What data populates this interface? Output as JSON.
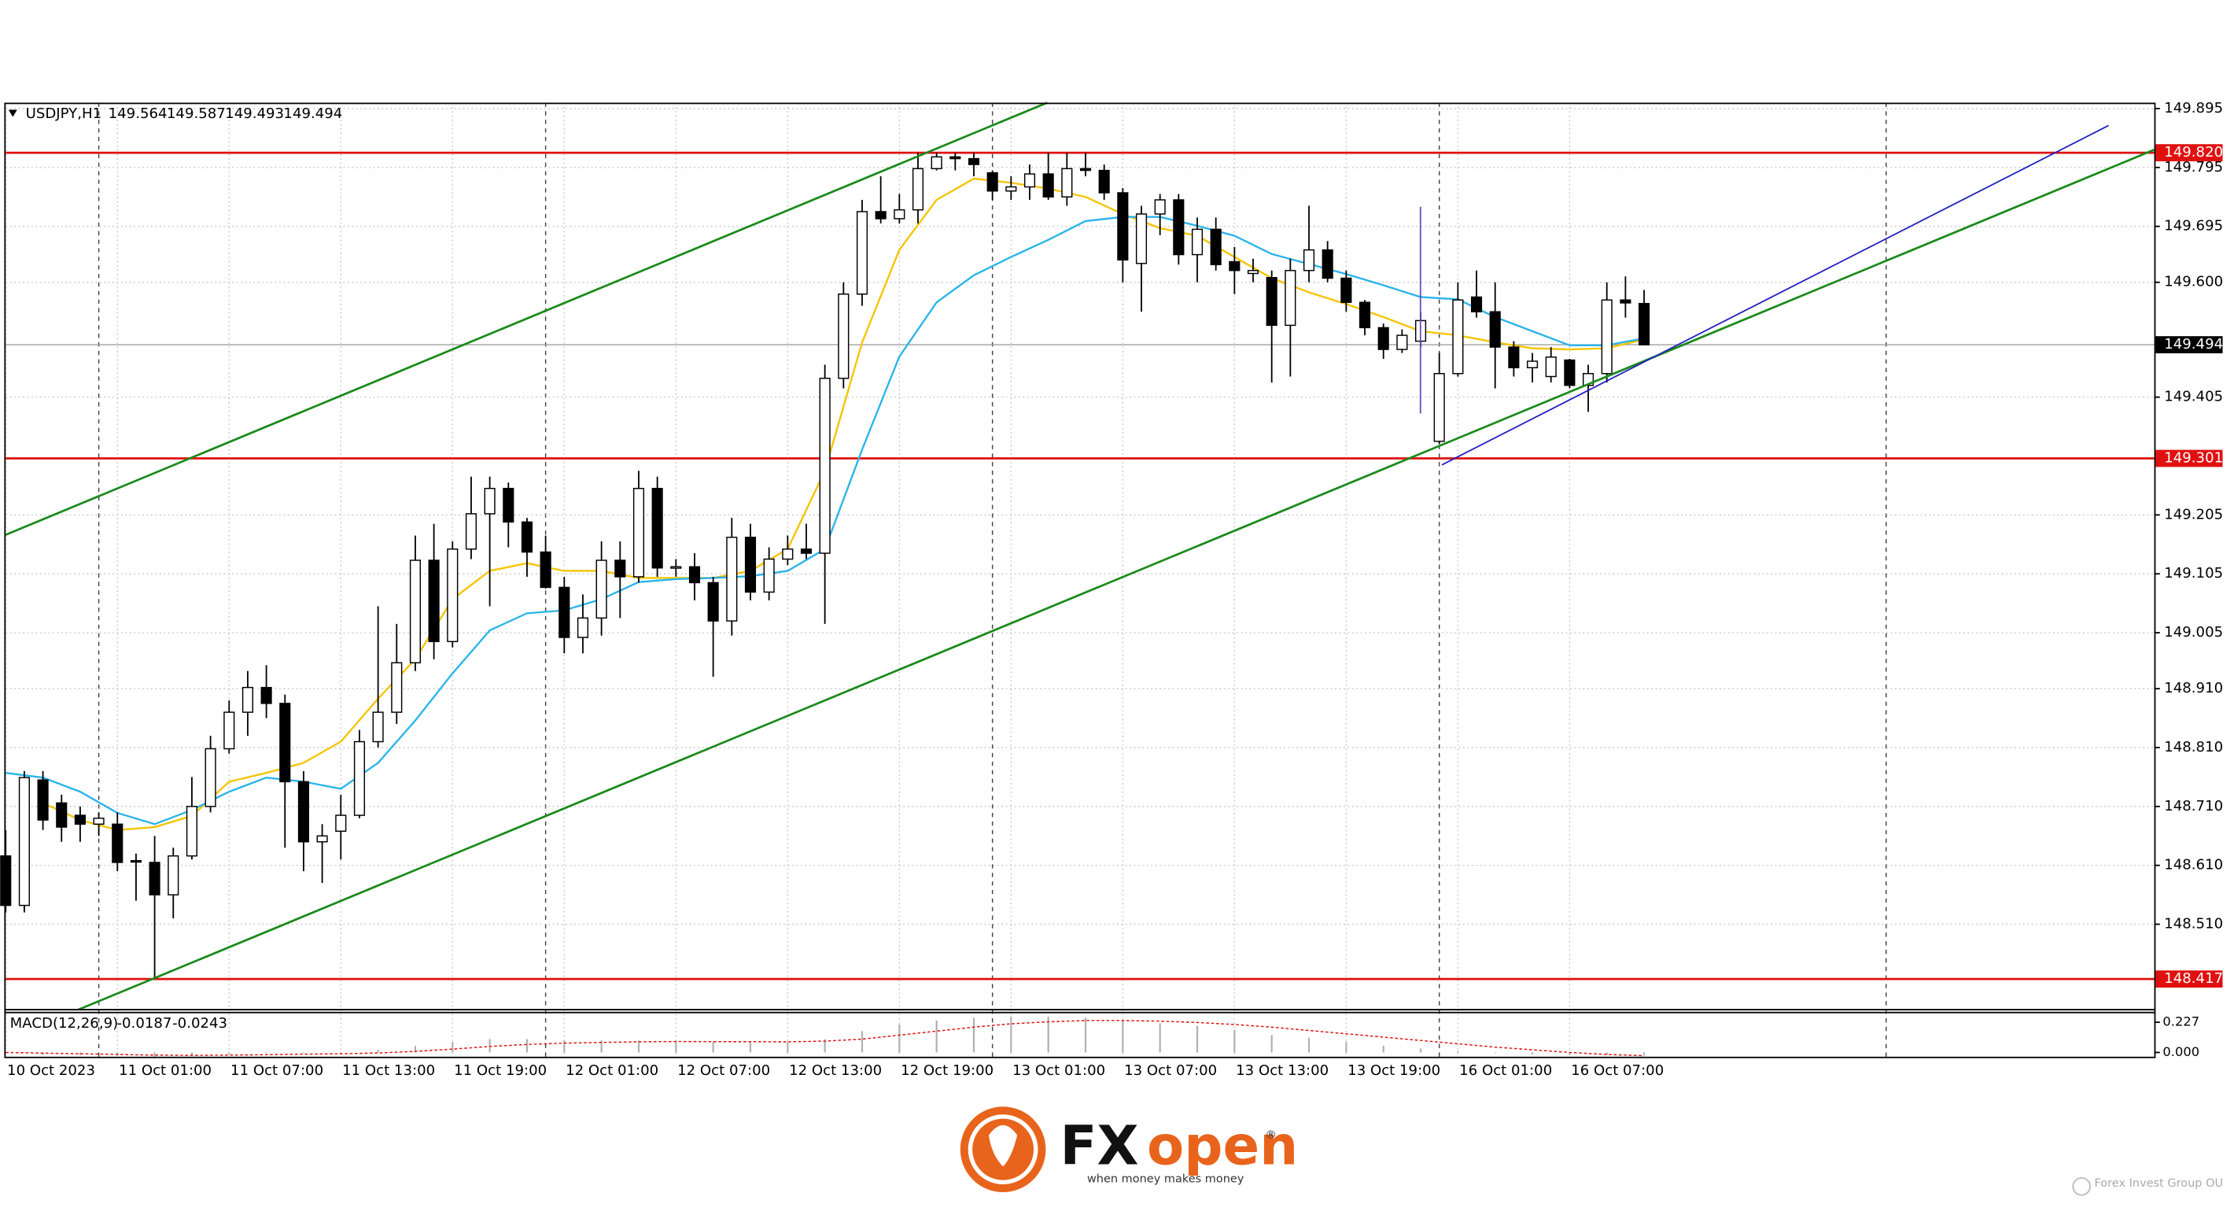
{
  "chart_data": [
    {
      "type": "candlestick",
      "title": "USDJPY,H1",
      "xlim": [
        0,
        115.4
      ],
      "ylim": [
        148.365,
        149.905
      ],
      "xticks": [
        {
          "value": 0,
          "label": "10 Oct 2023"
        },
        {
          "value": 6,
          "label": "11 Oct 01:00"
        },
        {
          "value": 12,
          "label": "11 Oct 07:00"
        },
        {
          "value": 18,
          "label": "11 Oct 13:00"
        },
        {
          "value": 24,
          "label": "11 Oct 19:00"
        },
        {
          "value": 30,
          "label": "12 Oct 01:00"
        },
        {
          "value": 36,
          "label": "12 Oct 07:00"
        },
        {
          "value": 42,
          "label": "12 Oct 13:00"
        },
        {
          "value": 48,
          "label": "12 Oct 19:00"
        },
        {
          "value": 54,
          "label": "13 Oct 01:00"
        },
        {
          "value": 60,
          "label": "13 Oct 07:00"
        },
        {
          "value": 66,
          "label": "13 Oct 13:00"
        },
        {
          "value": 72,
          "label": "13 Oct 19:00"
        },
        {
          "value": 78,
          "label": "16 Oct 01:00"
        },
        {
          "value": 84,
          "label": "16 Oct 07:00"
        }
      ],
      "yticks": [
        149.895,
        149.795,
        149.695,
        {
          "value": 149.6,
          "label": "149.600"
        },
        149.405,
        149.205,
        149.105,
        149.005,
        {
          "value": 148.91,
          "label": "148.910"
        },
        {
          "value": 148.81,
          "label": "148.810"
        },
        {
          "value": 148.71,
          "label": "148.710"
        },
        {
          "value": 148.61,
          "label": "148.610"
        },
        {
          "value": 148.51,
          "label": "148.510"
        }
      ],
      "grid": true,
      "levels": [
        {
          "value": 149.82,
          "label": "149.820"
        },
        149.301,
        148.417
      ],
      "level_color": "#e01010",
      "series": [
        {
          "color": "#000000",
          "open": [
            148.626,
            148.542,
            148.755,
            148.716,
            148.695,
            148.68,
            148.68,
            148.618,
            148.615,
            148.56,
            148.626,
            148.71,
            148.808,
            148.87,
            148.912,
            148.885,
            148.752,
            148.65,
            148.668,
            148.695,
            148.82,
            148.87,
            148.954,
            149.128,
            148.99,
            149.147,
            149.207,
            149.25,
            149.193,
            149.142,
            149.082,
            148.997,
            149.03,
            149.128,
            149.1,
            149.25,
            149.115,
            149.117,
            149.09,
            149.025,
            149.167,
            149.074,
            149.13,
            149.147,
            149.14,
            149.437,
            149.58,
            149.72,
            149.708,
            149.723,
            149.793,
            149.813,
            149.81,
            149.786,
            149.755,
            149.762,
            149.784,
            149.745,
            149.793,
            149.79,
            149.752,
            149.632,
            149.716,
            149.74,
            149.647,
            149.69,
            149.635,
            149.615,
            149.608,
            149.527,
            149.62,
            149.655,
            149.607,
            149.566,
            149.523,
            149.486,
            149.5,
            149.33,
            149.445,
            149.575,
            149.55,
            149.49,
            149.455,
            149.44,
            149.468,
            149.425,
            149.445,
            149.57,
            149.564
          ],
          "high": [
            148.67,
            148.77,
            148.77,
            148.73,
            148.71,
            148.7,
            148.7,
            148.63,
            148.66,
            148.64,
            148.76,
            148.83,
            148.89,
            148.94,
            148.95,
            148.9,
            148.77,
            148.68,
            148.73,
            148.84,
            149.05,
            149.02,
            149.17,
            149.19,
            149.16,
            149.27,
            149.27,
            149.26,
            149.2,
            149.17,
            149.1,
            149.07,
            149.16,
            149.16,
            149.28,
            149.27,
            149.13,
            149.14,
            149.1,
            149.2,
            149.19,
            149.15,
            149.17,
            149.19,
            149.46,
            149.6,
            149.74,
            149.78,
            149.75,
            149.82,
            149.82,
            149.82,
            149.82,
            149.79,
            149.78,
            149.8,
            149.82,
            149.82,
            149.82,
            149.8,
            149.76,
            149.73,
            149.75,
            149.75,
            149.71,
            149.71,
            149.66,
            149.64,
            149.62,
            149.64,
            149.73,
            149.67,
            149.62,
            149.57,
            149.53,
            149.52,
            149.55,
            149.48,
            149.6,
            149.62,
            149.6,
            149.5,
            149.48,
            149.49,
            149.47,
            149.46,
            149.6,
            149.61,
            149.587
          ],
          "low": [
            148.53,
            148.53,
            148.67,
            148.65,
            148.65,
            148.66,
            148.6,
            148.55,
            148.417,
            148.52,
            148.62,
            148.7,
            148.8,
            148.83,
            148.86,
            148.64,
            148.6,
            148.58,
            148.62,
            148.69,
            148.81,
            148.85,
            148.94,
            148.96,
            148.98,
            149.13,
            149.05,
            149.15,
            149.1,
            149.08,
            148.97,
            148.97,
            149.0,
            149.03,
            149.09,
            149.1,
            149.1,
            149.06,
            148.93,
            149.0,
            149.06,
            149.06,
            149.12,
            149.13,
            149.02,
            149.42,
            149.56,
            149.7,
            149.7,
            149.7,
            149.79,
            149.79,
            149.78,
            149.74,
            149.74,
            149.74,
            149.74,
            149.73,
            149.78,
            149.74,
            149.6,
            149.55,
            149.68,
            149.63,
            149.6,
            149.62,
            149.58,
            149.6,
            149.43,
            149.44,
            149.6,
            149.6,
            149.55,
            149.51,
            149.47,
            149.48,
            149.49,
            149.325,
            149.44,
            149.54,
            149.42,
            149.44,
            149.43,
            149.43,
            149.42,
            149.38,
            149.43,
            149.54,
            149.493
          ],
          "close": [
            148.542,
            148.759,
            148.687,
            148.675,
            148.68,
            148.69,
            148.615,
            148.616,
            148.56,
            148.626,
            148.71,
            148.808,
            148.87,
            148.912,
            148.885,
            148.752,
            148.65,
            148.66,
            148.695,
            148.82,
            148.87,
            148.954,
            149.128,
            148.99,
            149.147,
            149.207,
            149.25,
            149.193,
            149.142,
            149.082,
            148.997,
            149.03,
            149.128,
            149.1,
            149.25,
            149.115,
            149.117,
            149.09,
            149.025,
            149.167,
            149.074,
            149.13,
            149.147,
            149.14,
            149.437,
            149.58,
            149.72,
            149.708,
            149.723,
            149.793,
            149.813,
            149.81,
            149.8,
            149.755,
            149.762,
            149.784,
            149.745,
            149.793,
            149.79,
            149.752,
            149.638,
            149.716,
            149.74,
            149.647,
            149.69,
            149.63,
            149.62,
            149.62,
            149.527,
            149.62,
            149.655,
            149.607,
            149.566,
            149.523,
            149.486,
            149.51,
            149.535,
            149.445,
            149.57,
            149.55,
            149.49,
            149.455,
            149.466,
            149.473,
            149.425,
            149.445,
            149.57,
            149.565,
            149.494
          ]
        },
        {
          "color": "#f5c400",
          "x": [
            0,
            2,
            4,
            6,
            8,
            10,
            12,
            14,
            16,
            18,
            20,
            22,
            24,
            26,
            28,
            30,
            32,
            34,
            36,
            38,
            40,
            42,
            44,
            46,
            48,
            50,
            52,
            54,
            56,
            58,
            60,
            62,
            64,
            66,
            68,
            70,
            72,
            74,
            76,
            78,
            80,
            82,
            84,
            86,
            88
          ],
          "values": [
            null,
            148.716,
            148.687,
            148.67,
            148.675,
            148.694,
            148.752,
            148.767,
            148.784,
            148.82,
            148.893,
            148.96,
            149.062,
            149.11,
            149.123,
            149.11,
            149.11,
            149.098,
            149.098,
            149.098,
            149.11,
            149.147,
            149.28,
            149.498,
            149.655,
            149.74,
            149.776,
            149.769,
            149.759,
            149.745,
            149.716,
            149.692,
            149.679,
            149.643,
            149.607,
            149.583,
            149.563,
            149.541,
            149.517,
            149.51,
            149.498,
            149.488,
            149.486,
            149.488,
            149.503
          ]
        },
        {
          "color": "#2ab4ea",
          "x": [
            0,
            2,
            4,
            6,
            8,
            10,
            12,
            14,
            16,
            18,
            20,
            22,
            24,
            26,
            28,
            30,
            32,
            34,
            36,
            38,
            40,
            42,
            44,
            46,
            48,
            50,
            52,
            54,
            56,
            58,
            60,
            62,
            64,
            66,
            68,
            70,
            72,
            74,
            76,
            78,
            80,
            82,
            84,
            86,
            88
          ],
          "values": [
            148.767,
            148.759,
            148.735,
            148.699,
            148.68,
            148.704,
            148.735,
            148.759,
            148.752,
            148.74,
            148.784,
            148.856,
            148.936,
            149.009,
            149.038,
            149.043,
            149.062,
            149.091,
            149.096,
            149.098,
            149.101,
            149.11,
            149.147,
            149.316,
            149.474,
            149.566,
            149.612,
            149.643,
            149.672,
            149.704,
            149.711,
            149.711,
            149.696,
            149.679,
            149.648,
            149.631,
            149.614,
            149.595,
            149.575,
            149.571,
            149.541,
            149.517,
            149.493,
            149.493,
            149.505
          ]
        }
      ]
    },
    {
      "type": "macd",
      "title": "MACD(12,26,9)",
      "xlim": [
        0,
        115.4
      ],
      "ylim": [
        -0.032,
        0.3
      ],
      "yticks": [
        0.227,
        {
          "value": 0,
          "label": "0.000"
        }
      ],
      "x": [
        0,
        2,
        4,
        6,
        8,
        10,
        12,
        14,
        16,
        18,
        20,
        22,
        24,
        26,
        28,
        30,
        32,
        34,
        36,
        38,
        40,
        42,
        44,
        46,
        48,
        50,
        52,
        54,
        56,
        58,
        60,
        62,
        64,
        66,
        68,
        70,
        72,
        74,
        76,
        78,
        80,
        82,
        84,
        86,
        88
      ],
      "series": [
        {
          "color": "#b0b0b0",
          "values": [
            -0.01,
            -0.02,
            -0.02,
            -0.025,
            -0.03,
            -0.025,
            -0.015,
            -0.005,
            -0.005,
            0.0,
            0.02,
            0.05,
            0.08,
            0.1,
            0.1,
            0.09,
            0.09,
            0.09,
            0.085,
            0.08,
            0.08,
            0.08,
            0.1,
            0.16,
            0.21,
            0.24,
            0.26,
            0.27,
            0.27,
            0.26,
            0.24,
            0.22,
            0.2,
            0.17,
            0.13,
            0.11,
            0.08,
            0.05,
            0.03,
            0.01,
            -0.005,
            -0.015,
            -0.02,
            -0.02,
            -0.0187
          ]
        },
        {
          "color": "#e01010",
          "values": [
            0.0,
            -0.005,
            -0.01,
            -0.015,
            -0.02,
            -0.022,
            -0.02,
            -0.017,
            -0.013,
            -0.01,
            -0.004,
            0.008,
            0.025,
            0.045,
            0.06,
            0.07,
            0.075,
            0.08,
            0.082,
            0.081,
            0.081,
            0.08,
            0.085,
            0.1,
            0.13,
            0.16,
            0.19,
            0.215,
            0.23,
            0.24,
            0.24,
            0.235,
            0.225,
            0.21,
            0.19,
            0.165,
            0.14,
            0.115,
            0.09,
            0.065,
            0.04,
            0.02,
            0.0,
            -0.015,
            -0.0243
          ]
        }
      ]
    }
  ],
  "footer": {
    "logo_fx": "FX",
    "logo_open": "open",
    "logo_mark": "®",
    "tagline": "when money makes money",
    "company": "Forex Invest Group OU"
  }
}
